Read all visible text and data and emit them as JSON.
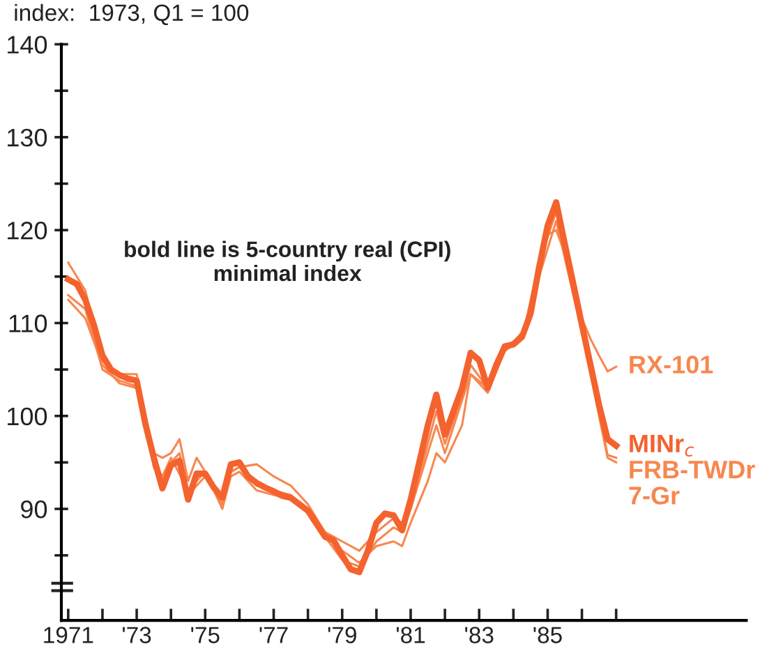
{
  "chart_data": {
    "type": "line",
    "ylabel": "index:  1973, Q1 = 100",
    "annotations": [
      "bold line is 5-country real (CPI)\nminimal index"
    ],
    "xlim": [
      1970.8,
      1990.8
    ],
    "xticks": [
      1971,
      {
        "value": 1972,
        "label": null
      },
      {
        "value": 1973,
        "label": "'73"
      },
      {
        "value": 1974,
        "label": null
      },
      {
        "value": 1975,
        "label": "'75"
      },
      {
        "value": 1976,
        "label": null
      },
      {
        "value": 1977,
        "label": "'77"
      },
      {
        "value": 1978,
        "label": null
      },
      {
        "value": 1979,
        "label": "'79"
      },
      {
        "value": 1980,
        "label": null
      },
      {
        "value": 1981,
        "label": "'81"
      },
      {
        "value": 1982,
        "label": null
      },
      {
        "value": 1983,
        "label": "'83"
      },
      {
        "value": 1984,
        "label": null
      },
      {
        "value": 1985,
        "label": "'85"
      },
      {
        "value": 1986,
        "label": null
      },
      {
        "value": 1987,
        "label": null
      }
    ],
    "ylim": [
      78,
      140
    ],
    "yticks": [
      {
        "value": 85,
        "label": null
      },
      90,
      {
        "value": 95,
        "label": null
      },
      100,
      {
        "value": 105,
        "label": null
      },
      110,
      {
        "value": 115,
        "label": null
      },
      120,
      {
        "value": 125,
        "label": null
      },
      130,
      {
        "value": 135,
        "label": null
      },
      140
    ],
    "grid": false,
    "legend": false,
    "marker": "none",
    "line_style": "solid",
    "series": [
      {
        "name": "RX-101",
        "color": "#f7874f",
        "x": [
          1971.0,
          1971.5,
          1972.0,
          1972.5,
          1973.0,
          1973.5,
          1973.75,
          1974.0,
          1974.25,
          1974.5,
          1974.75,
          1975.5,
          1975.75,
          1976.0,
          1976.5,
          1977.0,
          1977.5,
          1978.0,
          1978.5,
          1979.0,
          1979.5,
          1980.0,
          1980.5,
          1980.75,
          1981.0,
          1981.75,
          1982.0,
          1982.75,
          1983.25,
          1983.75,
          1984.25,
          1984.5,
          1985.0,
          1985.25,
          1985.5,
          1985.75,
          1986.0,
          1986.25,
          1986.5,
          1986.75,
          1987.0
        ],
        "values": [
          116.5,
          113.5,
          106,
          104.5,
          104.5,
          96,
          95.5,
          96,
          97.5,
          93,
          95.5,
          91,
          94,
          94.5,
          94.8,
          93.5,
          92.5,
          90.5,
          87.5,
          86.5,
          85.5,
          87.5,
          89,
          88.5,
          90,
          99,
          96,
          104.5,
          102.5,
          107,
          109,
          111.5,
          119.5,
          120,
          117.5,
          114,
          110.5,
          108.3,
          106.5,
          104.8,
          105.3
        ]
      },
      {
        "name": "MINr$_{c}$",
        "color": "#f4622e",
        "x": [
          1971.0,
          1971.25,
          1971.5,
          1971.75,
          1972.0,
          1972.25,
          1972.5,
          1972.75,
          1973.0,
          1973.25,
          1973.5,
          1973.75,
          1974.0,
          1974.25,
          1974.5,
          1974.75,
          1975.0,
          1975.25,
          1975.5,
          1975.75,
          1976.0,
          1976.25,
          1976.5,
          1976.75,
          1977.0,
          1977.25,
          1977.5,
          1977.75,
          1978.0,
          1978.25,
          1978.5,
          1978.75,
          1979.0,
          1979.25,
          1979.5,
          1979.75,
          1980.0,
          1980.25,
          1980.5,
          1980.75,
          1981.0,
          1981.25,
          1981.5,
          1981.75,
          1982.0,
          1982.25,
          1982.5,
          1982.75,
          1983.0,
          1983.25,
          1983.5,
          1983.75,
          1984.0,
          1984.25,
          1984.5,
          1984.75,
          1985.0,
          1985.25,
          1985.5,
          1985.75,
          1986.0,
          1986.25,
          1986.5,
          1986.75,
          1987.0
        ],
        "values": [
          114.7,
          114.2,
          112.5,
          109.8,
          106.5,
          105,
          104.4,
          104,
          103.8,
          99.2,
          95.5,
          92.2,
          94.7,
          95.2,
          91,
          93.8,
          93.8,
          92.3,
          91.2,
          94.8,
          95,
          93.5,
          92.8,
          92.3,
          91.9,
          91.4,
          91.2,
          90.5,
          89.8,
          88.4,
          87,
          86.6,
          85,
          83.5,
          83.2,
          85.5,
          88.5,
          89.5,
          89.3,
          87.7,
          91,
          95,
          99,
          102.3,
          98,
          100.5,
          103,
          106.8,
          106,
          103,
          105.5,
          107.5,
          107.7,
          108.5,
          111,
          116,
          120.5,
          123,
          118.5,
          114.2,
          109.8,
          105.5,
          101.2,
          97.5,
          96.8
        ]
      },
      {
        "name": "FRB-TWDr",
        "color": "#f7874f",
        "x": [
          1971.0,
          1971.5,
          1972.0,
          1972.5,
          1973.0,
          1973.5,
          1973.75,
          1974.0,
          1974.5,
          1975.0,
          1975.5,
          1975.75,
          1976.0,
          1976.5,
          1977.0,
          1977.5,
          1978.0,
          1978.5,
          1979.0,
          1979.5,
          1980.0,
          1980.5,
          1980.75,
          1981.0,
          1981.5,
          1981.75,
          1982.0,
          1982.5,
          1982.75,
          1983.25,
          1983.75,
          1984.25,
          1984.75,
          1985.25,
          1985.5,
          1986.0,
          1986.5,
          1986.75,
          1987.0
        ],
        "values": [
          113,
          111.5,
          105,
          103.8,
          103.2,
          95,
          93.5,
          95.5,
          92,
          94,
          90,
          93.5,
          94,
          92,
          91.5,
          91,
          90,
          87.5,
          85.5,
          84.2,
          86,
          86.5,
          86,
          88.5,
          93,
          96,
          95,
          99,
          104.5,
          103,
          107.5,
          108.5,
          115,
          121,
          117,
          109,
          100.5,
          95.8,
          95.5
        ]
      },
      {
        "name": "7-Gr",
        "color": "#f7874f",
        "x": [
          1971.0,
          1971.5,
          1972.0,
          1972.5,
          1973.0,
          1973.5,
          1973.75,
          1974.0,
          1974.25,
          1974.5,
          1975.0,
          1975.5,
          1975.75,
          1976.0,
          1976.5,
          1977.0,
          1977.5,
          1978.0,
          1978.5,
          1979.0,
          1979.5,
          1980.0,
          1980.5,
          1980.75,
          1981.0,
          1981.5,
          1981.75,
          1982.0,
          1982.5,
          1982.75,
          1983.25,
          1983.75,
          1984.25,
          1984.75,
          1985.25,
          1985.5,
          1986.0,
          1986.5,
          1986.75,
          1987.0
        ],
        "values": [
          112.5,
          110.5,
          105.5,
          103.5,
          103,
          94.5,
          92.5,
          95,
          96,
          91.5,
          93.5,
          90.5,
          94,
          94.5,
          92.5,
          92,
          91.5,
          89.5,
          87,
          84.5,
          83.8,
          86.5,
          88,
          87.5,
          90,
          97,
          100.5,
          97,
          102,
          105.5,
          103,
          107,
          108.3,
          116.5,
          122,
          118,
          109.5,
          100,
          95.5,
          95
        ]
      }
    ]
  }
}
